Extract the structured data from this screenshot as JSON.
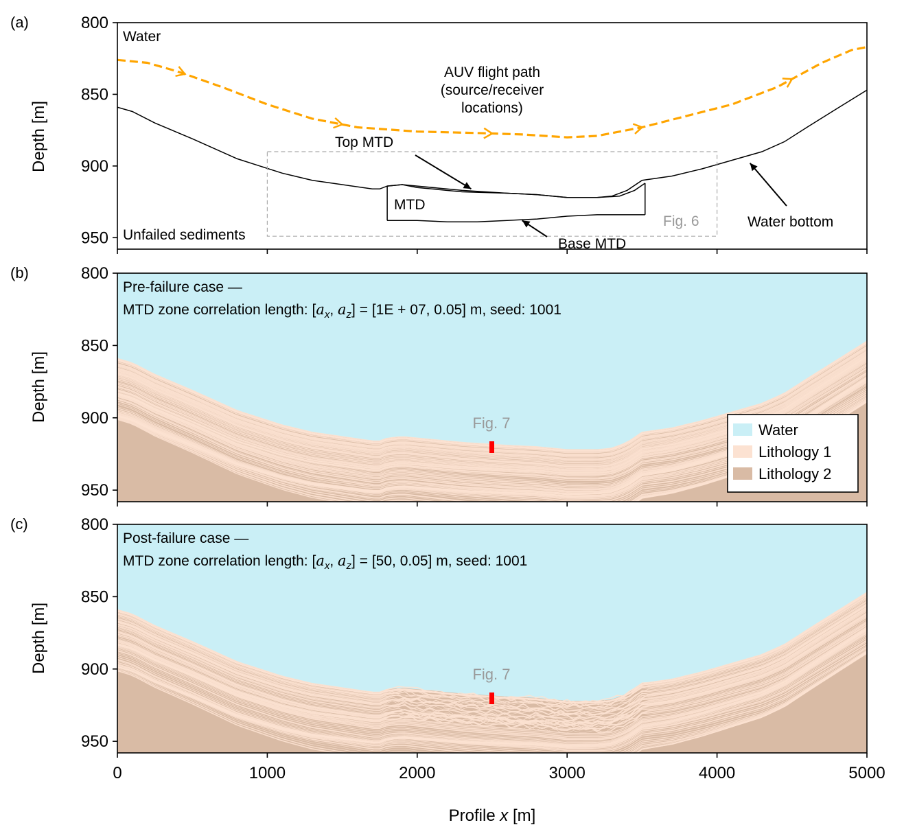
{
  "chart_data": [
    {
      "panel": "a",
      "type": "line",
      "panel_label": "(a)",
      "ylabel": "Depth [m]",
      "xlabel": "",
      "xlim": [
        0,
        5000
      ],
      "ylim": [
        800,
        958
      ],
      "y_inverted": true,
      "yticks": [
        800,
        850,
        900,
        950
      ],
      "xticks": [
        0,
        1000,
        2000,
        3000,
        4000,
        5000
      ],
      "xtick_labels_visible": false,
      "grid": false,
      "colors": {
        "auv_path": "#FFA500",
        "lines": "#000000",
        "fig6_box": "#AAAAAA"
      },
      "series": [
        {
          "name": "AUV flight path",
          "style": "dashed",
          "color": "#FFA500",
          "arrows_at_x": [
            450,
            1500,
            2500,
            3500,
            4500
          ],
          "x": [
            0,
            200,
            400,
            700,
            1000,
            1300,
            1600,
            2000,
            2400,
            2700,
            3000,
            3200,
            3500,
            3800,
            4100,
            4400,
            4700,
            4900,
            5000
          ],
          "y": [
            826,
            828,
            834,
            845,
            857,
            867,
            873,
            876,
            877,
            878,
            880,
            879,
            873,
            865,
            857,
            845,
            828,
            819,
            817
          ]
        },
        {
          "name": "Water bottom",
          "style": "solid",
          "color": "#000000",
          "x": [
            0,
            100,
            250,
            500,
            800,
            1100,
            1300,
            1500,
            1700,
            1750,
            1800,
            1900,
            2000,
            2300,
            2600,
            2800,
            3000,
            3200,
            3300,
            3400,
            3500,
            3700,
            3900,
            4100,
            4300,
            4450,
            4600,
            4800,
            5000
          ],
          "y": [
            859,
            862,
            870,
            881,
            895,
            905,
            910,
            913,
            916,
            916,
            914,
            913,
            914,
            917,
            919,
            920,
            922,
            922,
            921,
            917,
            910,
            907,
            902,
            896,
            890,
            883,
            873,
            860,
            847
          ]
        },
        {
          "name": "Top MTD",
          "style": "solid",
          "color": "#000000",
          "x": [
            1800,
            1900,
            2000,
            2300,
            2600,
            2800,
            3000,
            3200,
            3350,
            3450,
            3520
          ],
          "y": [
            914,
            913,
            915,
            918,
            919,
            920,
            922,
            922,
            921,
            917,
            912
          ]
        },
        {
          "name": "Base MTD",
          "style": "solid",
          "color": "#000000",
          "x": [
            1800,
            2000,
            2200,
            2400,
            2600,
            2800,
            3000,
            3200,
            3400,
            3520
          ],
          "y": [
            938,
            938,
            939,
            939,
            938,
            937,
            935,
            934,
            934,
            934
          ]
        },
        {
          "name": "MTD side walls",
          "style": "solid",
          "color": "#000000",
          "segments": [
            [
              [
                1800,
                914
              ],
              [
                1800,
                938
              ]
            ],
            [
              [
                3520,
                912
              ],
              [
                3520,
                934
              ]
            ]
          ]
        },
        {
          "name": "Fig. 6 box",
          "style": "dashed",
          "color": "#AAAAAA",
          "x": [
            1000,
            4000,
            4000,
            1000,
            1000
          ],
          "y": [
            890,
            890,
            949,
            949,
            890
          ]
        }
      ],
      "annotations": [
        {
          "text": "Water",
          "x": 30,
          "y": 808
        },
        {
          "text": "AUV flight path",
          "x": 2500,
          "y": 834
        },
        {
          "text": "(source/receiver",
          "x": 2500,
          "y": 846
        },
        {
          "text": "locations)",
          "x": 2500,
          "y": 858
        },
        {
          "text": "Top MTD",
          "x": 1720,
          "y": 885,
          "arrow_to": [
            2360,
            916
          ]
        },
        {
          "text": "MTD",
          "x": 1840,
          "y": 929
        },
        {
          "text": "Base MTD",
          "x": 3200,
          "y": 954,
          "arrow_to": [
            2700,
            938
          ]
        },
        {
          "text": "Water bottom",
          "x": 4560,
          "y": 941,
          "arrow_to": [
            4220,
            898
          ]
        },
        {
          "text": "Unfailed sediments",
          "x": 30,
          "y": 948
        },
        {
          "text": "Fig. 6",
          "x": 3950,
          "y": 940
        }
      ]
    },
    {
      "panel": "b",
      "type": "heatmap",
      "panel_label": "(b)",
      "ylabel": "Depth [m]",
      "xlim": [
        0,
        5000
      ],
      "ylim": [
        800,
        958
      ],
      "y_inverted": true,
      "yticks": [
        800,
        850,
        900,
        950
      ],
      "xticks": [
        0,
        1000,
        2000,
        3000,
        4000,
        5000
      ],
      "xtick_labels_visible": false,
      "title_lines": [
        "Pre-failure case —",
        "MTD zone correlation length: [a_x, a_z] = [1E+07, 0.05] m, seed: 1001"
      ],
      "categories": [
        "Water",
        "Lithology 1",
        "Lithology 2"
      ],
      "category_colors": [
        "#CAEFF6",
        "#FCE2D2",
        "#D9BBA5"
      ],
      "legend": {
        "placement": "lower-right",
        "entries": [
          "Water",
          "Lithology 1",
          "Lithology 2"
        ]
      },
      "annotations": [
        {
          "text": "Fig. 7",
          "x": 2500,
          "y": 904,
          "color": "#999999",
          "marker": {
            "x": 2500,
            "y_range": [
              917,
              925
            ],
            "color": "#FF0000"
          }
        }
      ],
      "mtd_layering": "continuous"
    },
    {
      "panel": "c",
      "type": "heatmap",
      "panel_label": "(c)",
      "ylabel": "Depth [m]",
      "xlabel": "Profile x [m]",
      "xlim": [
        0,
        5000
      ],
      "ylim": [
        800,
        958
      ],
      "y_inverted": true,
      "yticks": [
        800,
        850,
        900,
        950
      ],
      "xticks": [
        0,
        1000,
        2000,
        3000,
        4000,
        5000
      ],
      "xtick_labels_visible": true,
      "title_lines": [
        "Post-failure case —",
        "MTD zone correlation length: [a_x, a_z] = [50, 0.05] m, seed: 1001"
      ],
      "categories": [
        "Water",
        "Lithology 1",
        "Lithology 2"
      ],
      "category_colors": [
        "#CAEFF6",
        "#FCE2D2",
        "#D9BBA5"
      ],
      "annotations": [
        {
          "text": "Fig. 7",
          "x": 2500,
          "y": 904,
          "color": "#999999",
          "marker": {
            "x": 2500,
            "y_range": [
              917,
              925
            ],
            "color": "#FF0000"
          }
        }
      ],
      "mtd_layering": "chaotic"
    }
  ],
  "labels": {
    "panel_a": "(a)",
    "panel_b": "(b)",
    "panel_c": "(c)",
    "ylabel": "Depth [m]",
    "xlabel_prefix": "Profile ",
    "xlabel_var": "x",
    "xlabel_suffix": " [m]",
    "yticks": [
      "800",
      "850",
      "900",
      "950"
    ],
    "xticks": [
      "0",
      "1000",
      "2000",
      "3000",
      "4000",
      "5000"
    ],
    "a_water": "Water",
    "a_auv1": "AUV flight path",
    "a_auv2": "(source/receiver",
    "a_auv3": "locations)",
    "a_top_mtd": "Top MTD",
    "a_mtd": "MTD",
    "a_base_mtd": "Base MTD",
    "a_water_bottom": "Water bottom",
    "a_unfailed": "Unfailed sediments",
    "a_fig6": "Fig. 6",
    "b_title1": "Pre-failure case —",
    "b_title2_prefix": "MTD zone correlation length: ",
    "b_title2_math": "[1E + 07, 0.05]",
    "b_title2_suffix": " m, seed: 1001",
    "c_title1": "Post-failure case —",
    "c_title2_prefix": "MTD zone correlation length: ",
    "c_title2_math": "[50, 0.05]",
    "c_title2_suffix": " m, seed: 1001",
    "fig7": "Fig. 7",
    "legend_water": "Water",
    "legend_lith1": "Lithology 1",
    "legend_lith2": "Lithology 2"
  }
}
